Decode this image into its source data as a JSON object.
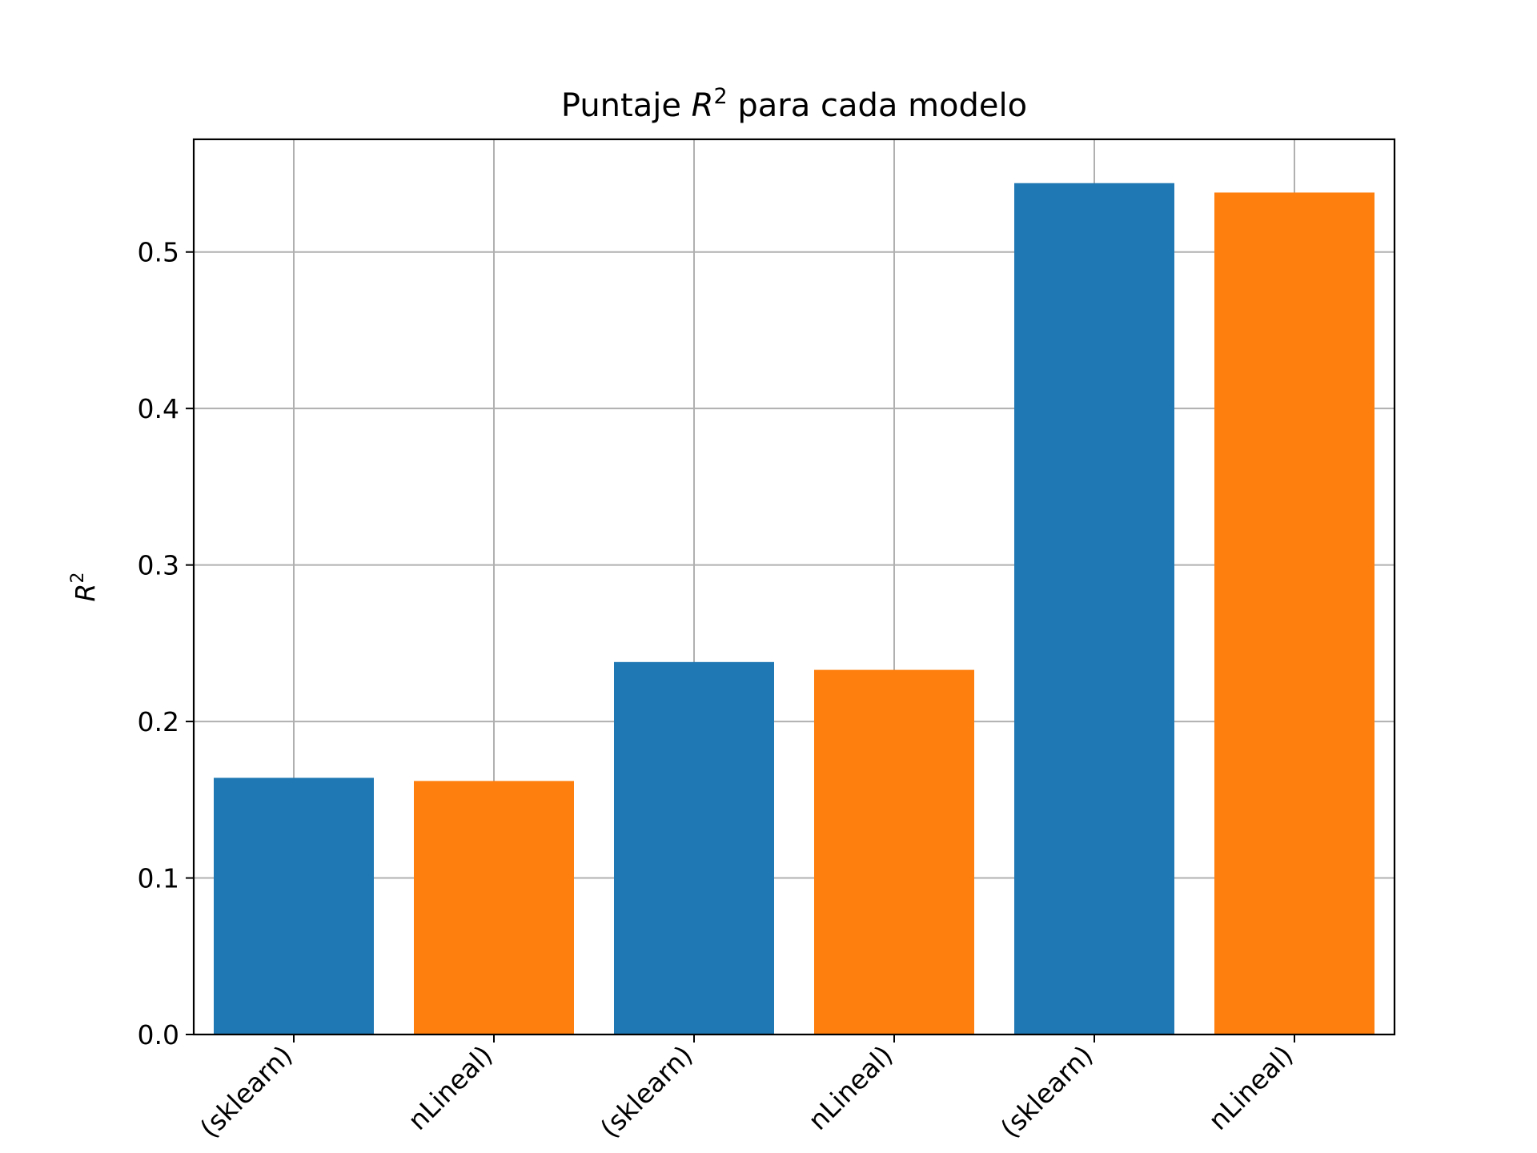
{
  "chart_data": {
    "type": "bar",
    "title_prefix": "Puntaje ",
    "title_math_base": "R",
    "title_math_sup": "2",
    "title_suffix": " para cada modelo",
    "ylabel_base": "R",
    "ylabel_sup": "2",
    "xlabel": "",
    "ylim": [
      0,
      0.572
    ],
    "yticks": [
      0.0,
      0.1,
      0.2,
      0.3,
      0.4,
      0.5
    ],
    "ytick_labels": [
      "0.0",
      "0.1",
      "0.2",
      "0.3",
      "0.4",
      "0.5"
    ],
    "grid": true,
    "categories": [
      "(sklearn)",
      "nLineal)",
      "(sklearn)",
      "nLineal)",
      "(sklearn)",
      "nLineal)"
    ],
    "values": [
      0.164,
      0.162,
      0.238,
      0.233,
      0.544,
      0.538
    ],
    "colors": [
      "#1f77b4",
      "#ff7f0e",
      "#1f77b4",
      "#ff7f0e",
      "#1f77b4",
      "#ff7f0e"
    ]
  }
}
